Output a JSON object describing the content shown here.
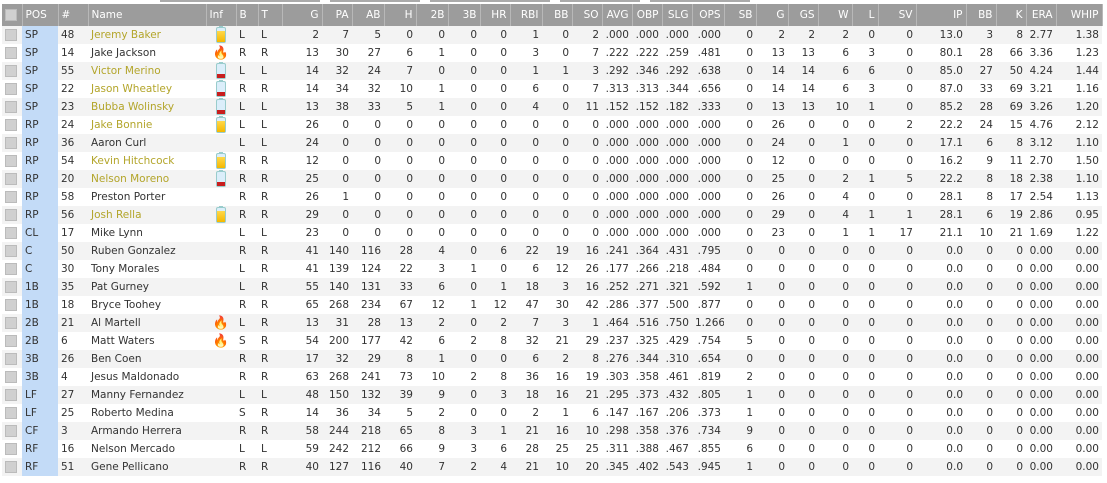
{
  "columns": [
    "",
    "POS",
    "#",
    "Name",
    "Inf",
    "B",
    "T",
    "G",
    "PA",
    "AB",
    "H",
    "2B",
    "3B",
    "HR",
    "RBI",
    "BB",
    "SO",
    "AVG",
    "OBP",
    "SLG",
    "OPS",
    "SB",
    "G",
    "GS",
    "W",
    "L",
    "SV",
    "IP",
    "BB",
    "K",
    "ERA",
    "WHIP"
  ],
  "colors": {
    "header_bg": "#9c9c9c",
    "pos_bg": "#c3dbf7",
    "highlight_name": "#b3a52a",
    "battery_full": "#f5b800",
    "battery_low": "#c81e1e",
    "fire": "#e53"
  },
  "rows": [
    {
      "pos": "SP",
      "num": "48",
      "name": "Jeremy Baker",
      "hl": true,
      "inf": "battery-full-icon",
      "b": "L",
      "t": "L",
      "stats": [
        "2",
        "7",
        "5",
        "0",
        "0",
        "0",
        "0",
        "1",
        "0",
        "2",
        ".000",
        ".000",
        ".000",
        ".000",
        "0",
        "2",
        "2",
        "2",
        "0",
        "0",
        "13.0",
        "3",
        "8",
        "2.77",
        "1.38"
      ]
    },
    {
      "pos": "SP",
      "num": "14",
      "name": "Jake Jackson",
      "hl": false,
      "inf": "fire-icon",
      "b": "R",
      "t": "R",
      "stats": [
        "13",
        "30",
        "27",
        "6",
        "1",
        "0",
        "0",
        "3",
        "0",
        "7",
        ".222",
        ".222",
        ".259",
        ".481",
        "0",
        "13",
        "13",
        "6",
        "3",
        "0",
        "80.1",
        "28",
        "66",
        "3.36",
        "1.23"
      ]
    },
    {
      "pos": "SP",
      "num": "55",
      "name": "Victor Merino",
      "hl": true,
      "inf": "battery-low-icon",
      "b": "L",
      "t": "L",
      "stats": [
        "14",
        "32",
        "24",
        "7",
        "0",
        "0",
        "0",
        "1",
        "1",
        "3",
        ".292",
        ".346",
        ".292",
        ".638",
        "0",
        "14",
        "14",
        "6",
        "6",
        "0",
        "85.0",
        "27",
        "50",
        "4.24",
        "1.44"
      ]
    },
    {
      "pos": "SP",
      "num": "22",
      "name": "Jason Wheatley",
      "hl": true,
      "inf": "battery-low-icon",
      "b": "R",
      "t": "R",
      "stats": [
        "14",
        "34",
        "32",
        "10",
        "1",
        "0",
        "0",
        "6",
        "0",
        "7",
        ".313",
        ".313",
        ".344",
        ".656",
        "0",
        "14",
        "14",
        "6",
        "3",
        "0",
        "87.0",
        "33",
        "69",
        "3.21",
        "1.16"
      ]
    },
    {
      "pos": "SP",
      "num": "23",
      "name": "Bubba Wolinsky",
      "hl": true,
      "inf": "battery-low-icon",
      "b": "L",
      "t": "L",
      "stats": [
        "13",
        "38",
        "33",
        "5",
        "1",
        "0",
        "0",
        "4",
        "0",
        "11",
        ".152",
        ".152",
        ".182",
        ".333",
        "0",
        "13",
        "13",
        "10",
        "1",
        "0",
        "85.2",
        "28",
        "69",
        "3.26",
        "1.20"
      ]
    },
    {
      "pos": "RP",
      "num": "24",
      "name": "Jake Bonnie",
      "hl": true,
      "inf": "battery-full-icon",
      "b": "L",
      "t": "L",
      "stats": [
        "26",
        "0",
        "0",
        "0",
        "0",
        "0",
        "0",
        "0",
        "0",
        "0",
        ".000",
        ".000",
        ".000",
        ".000",
        "0",
        "26",
        "0",
        "0",
        "0",
        "2",
        "22.2",
        "24",
        "15",
        "4.76",
        "2.12"
      ]
    },
    {
      "pos": "RP",
      "num": "36",
      "name": "Aaron Curl",
      "hl": false,
      "inf": "",
      "b": "L",
      "t": "L",
      "stats": [
        "24",
        "0",
        "0",
        "0",
        "0",
        "0",
        "0",
        "0",
        "0",
        "0",
        ".000",
        ".000",
        ".000",
        ".000",
        "0",
        "24",
        "0",
        "1",
        "0",
        "0",
        "17.1",
        "6",
        "8",
        "3.12",
        "1.10"
      ]
    },
    {
      "pos": "RP",
      "num": "54",
      "name": "Kevin Hitchcock",
      "hl": true,
      "inf": "battery-full-icon",
      "b": "R",
      "t": "R",
      "stats": [
        "12",
        "0",
        "0",
        "0",
        "0",
        "0",
        "0",
        "0",
        "0",
        "0",
        ".000",
        ".000",
        ".000",
        ".000",
        "0",
        "12",
        "0",
        "0",
        "0",
        "0",
        "16.2",
        "9",
        "11",
        "2.70",
        "1.50"
      ]
    },
    {
      "pos": "RP",
      "num": "20",
      "name": "Nelson Moreno",
      "hl": true,
      "inf": "battery-low-icon",
      "b": "R",
      "t": "R",
      "stats": [
        "25",
        "0",
        "0",
        "0",
        "0",
        "0",
        "0",
        "0",
        "0",
        "0",
        ".000",
        ".000",
        ".000",
        ".000",
        "0",
        "25",
        "0",
        "2",
        "1",
        "5",
        "22.2",
        "8",
        "18",
        "2.38",
        "1.10"
      ]
    },
    {
      "pos": "RP",
      "num": "58",
      "name": "Preston Porter",
      "hl": false,
      "inf": "",
      "b": "R",
      "t": "R",
      "stats": [
        "26",
        "1",
        "0",
        "0",
        "0",
        "0",
        "0",
        "0",
        "0",
        "0",
        ".000",
        ".000",
        ".000",
        ".000",
        "0",
        "26",
        "0",
        "4",
        "0",
        "0",
        "28.1",
        "8",
        "17",
        "2.54",
        "1.13"
      ]
    },
    {
      "pos": "RP",
      "num": "56",
      "name": "Josh Rella",
      "hl": true,
      "inf": "battery-full-icon",
      "b": "R",
      "t": "R",
      "stats": [
        "29",
        "0",
        "0",
        "0",
        "0",
        "0",
        "0",
        "0",
        "0",
        "0",
        ".000",
        ".000",
        ".000",
        ".000",
        "0",
        "29",
        "0",
        "4",
        "1",
        "1",
        "28.1",
        "6",
        "19",
        "2.86",
        "0.95"
      ]
    },
    {
      "pos": "CL",
      "num": "17",
      "name": "Mike Lynn",
      "hl": false,
      "inf": "",
      "b": "L",
      "t": "L",
      "stats": [
        "23",
        "0",
        "0",
        "0",
        "0",
        "0",
        "0",
        "0",
        "0",
        "0",
        ".000",
        ".000",
        ".000",
        ".000",
        "0",
        "23",
        "0",
        "1",
        "1",
        "17",
        "21.1",
        "10",
        "21",
        "1.69",
        "1.22"
      ]
    },
    {
      "pos": "C",
      "num": "50",
      "name": "Ruben Gonzalez",
      "hl": false,
      "inf": "",
      "b": "R",
      "t": "R",
      "stats": [
        "41",
        "140",
        "116",
        "28",
        "4",
        "0",
        "6",
        "22",
        "19",
        "16",
        ".241",
        ".364",
        ".431",
        ".795",
        "0",
        "0",
        "0",
        "0",
        "0",
        "0",
        "0.0",
        "0",
        "0",
        "0.00",
        "0.00"
      ]
    },
    {
      "pos": "C",
      "num": "30",
      "name": "Tony Morales",
      "hl": false,
      "inf": "",
      "b": "L",
      "t": "R",
      "stats": [
        "41",
        "139",
        "124",
        "22",
        "3",
        "1",
        "0",
        "6",
        "12",
        "26",
        ".177",
        ".266",
        ".218",
        ".484",
        "0",
        "0",
        "0",
        "0",
        "0",
        "0",
        "0.0",
        "0",
        "0",
        "0.00",
        "0.00"
      ]
    },
    {
      "pos": "1B",
      "num": "35",
      "name": "Pat Gurney",
      "hl": false,
      "inf": "",
      "b": "L",
      "t": "R",
      "stats": [
        "55",
        "140",
        "131",
        "33",
        "6",
        "0",
        "1",
        "18",
        "3",
        "16",
        ".252",
        ".271",
        ".321",
        ".592",
        "1",
        "0",
        "0",
        "0",
        "0",
        "0",
        "0.0",
        "0",
        "0",
        "0.00",
        "0.00"
      ]
    },
    {
      "pos": "1B",
      "num": "18",
      "name": "Bryce Toohey",
      "hl": false,
      "inf": "",
      "b": "R",
      "t": "R",
      "stats": [
        "65",
        "268",
        "234",
        "67",
        "12",
        "1",
        "12",
        "47",
        "30",
        "42",
        ".286",
        ".377",
        ".500",
        ".877",
        "0",
        "0",
        "0",
        "0",
        "0",
        "0",
        "0.0",
        "0",
        "0",
        "0.00",
        "0.00"
      ]
    },
    {
      "pos": "2B",
      "num": "21",
      "name": "Al Martell",
      "hl": false,
      "inf": "fire-icon",
      "b": "L",
      "t": "R",
      "stats": [
        "13",
        "31",
        "28",
        "13",
        "2",
        "0",
        "2",
        "7",
        "3",
        "1",
        ".464",
        ".516",
        ".750",
        "1.266",
        "0",
        "0",
        "0",
        "0",
        "0",
        "0",
        "0.0",
        "0",
        "0",
        "0.00",
        "0.00"
      ]
    },
    {
      "pos": "2B",
      "num": "6",
      "name": "Matt Waters",
      "hl": false,
      "inf": "fire-icon",
      "b": "S",
      "t": "R",
      "stats": [
        "54",
        "200",
        "177",
        "42",
        "6",
        "2",
        "8",
        "32",
        "21",
        "29",
        ".237",
        ".325",
        ".429",
        ".754",
        "5",
        "0",
        "0",
        "0",
        "0",
        "0",
        "0.0",
        "0",
        "0",
        "0.00",
        "0.00"
      ]
    },
    {
      "pos": "3B",
      "num": "26",
      "name": "Ben Coen",
      "hl": false,
      "inf": "",
      "b": "R",
      "t": "R",
      "stats": [
        "17",
        "32",
        "29",
        "8",
        "1",
        "0",
        "0",
        "6",
        "2",
        "8",
        ".276",
        ".344",
        ".310",
        ".654",
        "0",
        "0",
        "0",
        "0",
        "0",
        "0",
        "0.0",
        "0",
        "0",
        "0.00",
        "0.00"
      ]
    },
    {
      "pos": "3B",
      "num": "4",
      "name": "Jesus Maldonado",
      "hl": false,
      "inf": "",
      "b": "R",
      "t": "R",
      "stats": [
        "63",
        "268",
        "241",
        "73",
        "10",
        "2",
        "8",
        "36",
        "16",
        "19",
        ".303",
        ".358",
        ".461",
        ".819",
        "2",
        "0",
        "0",
        "0",
        "0",
        "0",
        "0.0",
        "0",
        "0",
        "0.00",
        "0.00"
      ]
    },
    {
      "pos": "LF",
      "num": "27",
      "name": "Manny Fernandez",
      "hl": false,
      "inf": "",
      "b": "L",
      "t": "L",
      "stats": [
        "48",
        "150",
        "132",
        "39",
        "9",
        "0",
        "3",
        "18",
        "16",
        "21",
        ".295",
        ".373",
        ".432",
        ".805",
        "1",
        "0",
        "0",
        "0",
        "0",
        "0",
        "0.0",
        "0",
        "0",
        "0.00",
        "0.00"
      ]
    },
    {
      "pos": "LF",
      "num": "25",
      "name": "Roberto Medina",
      "hl": false,
      "inf": "",
      "b": "S",
      "t": "R",
      "stats": [
        "14",
        "36",
        "34",
        "5",
        "2",
        "0",
        "0",
        "2",
        "1",
        "6",
        ".147",
        ".167",
        ".206",
        ".373",
        "1",
        "0",
        "0",
        "0",
        "0",
        "0",
        "0.0",
        "0",
        "0",
        "0.00",
        "0.00"
      ]
    },
    {
      "pos": "CF",
      "num": "3",
      "name": "Armando Herrera",
      "hl": false,
      "inf": "",
      "b": "R",
      "t": "R",
      "stats": [
        "58",
        "244",
        "218",
        "65",
        "8",
        "3",
        "1",
        "21",
        "16",
        "10",
        ".298",
        ".358",
        ".376",
        ".734",
        "9",
        "0",
        "0",
        "0",
        "0",
        "0",
        "0.0",
        "0",
        "0",
        "0.00",
        "0.00"
      ]
    },
    {
      "pos": "RF",
      "num": "16",
      "name": "Nelson Mercado",
      "hl": false,
      "inf": "",
      "b": "L",
      "t": "L",
      "stats": [
        "59",
        "242",
        "212",
        "66",
        "9",
        "3",
        "6",
        "28",
        "25",
        "25",
        ".311",
        ".388",
        ".467",
        ".855",
        "6",
        "0",
        "0",
        "0",
        "0",
        "0",
        "0.0",
        "0",
        "0",
        "0.00",
        "0.00"
      ]
    },
    {
      "pos": "RF",
      "num": "51",
      "name": "Gene Pellicano",
      "hl": false,
      "inf": "",
      "b": "R",
      "t": "R",
      "stats": [
        "40",
        "127",
        "116",
        "40",
        "7",
        "2",
        "4",
        "21",
        "10",
        "20",
        ".345",
        ".402",
        ".543",
        ".945",
        "1",
        "0",
        "0",
        "0",
        "0",
        "0",
        "0.0",
        "0",
        "0",
        "0.00",
        "0.00"
      ]
    }
  ]
}
